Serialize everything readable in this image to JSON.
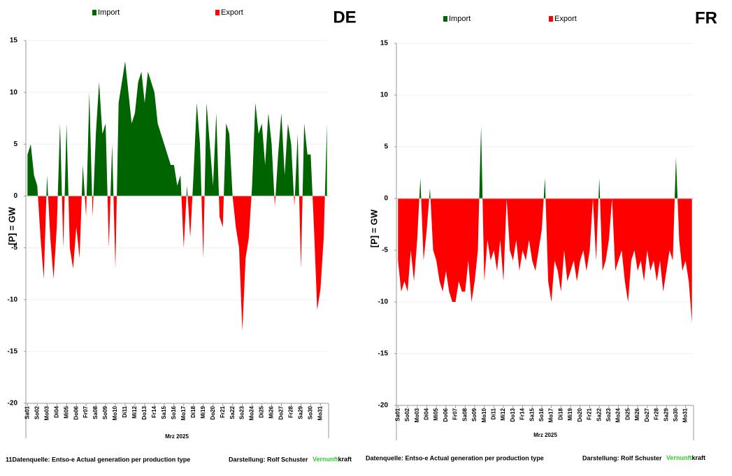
{
  "chart_data": [
    {
      "type": "area",
      "title": "DE",
      "ylabel": "[P] = GW",
      "xlabel": "Mrz 2025",
      "legend": [
        {
          "name": "Import",
          "color": "#006400"
        },
        {
          "name": "Export",
          "color": "#ff0000"
        }
      ],
      "positive_color": "#006400",
      "negative_color": "#ff0000",
      "negative_tick_color": "#c00000",
      "ylim": [
        -20,
        15
      ],
      "yticks": [
        -20,
        -15,
        -10,
        -5,
        0,
        5,
        10,
        15
      ],
      "grid": true,
      "categories": [
        "Sa01",
        null,
        null,
        "So02",
        null,
        null,
        "Mo03",
        null,
        null,
        "Di04",
        null,
        null,
        "Mi05",
        null,
        null,
        "Do06",
        null,
        null,
        "Fr07",
        null,
        null,
        "Sa08",
        null,
        null,
        "So09",
        null,
        null,
        "Mo10",
        null,
        null,
        "Di11",
        null,
        null,
        "Mi12",
        null,
        null,
        "Do13",
        null,
        null,
        "Fr14",
        null,
        null,
        "Sa15",
        null,
        null,
        "So16",
        null,
        null,
        "Mo17",
        null,
        null,
        "Di18",
        null,
        null,
        "Mi19",
        null,
        null,
        "Do20",
        null,
        null,
        "Fr21",
        null,
        null,
        "Sa22",
        null,
        null,
        "So23",
        null,
        null,
        "Mo24",
        null,
        null,
        "Di25",
        null,
        null,
        "Mi26",
        null,
        null,
        "Do27",
        null,
        null,
        "Fr28",
        null,
        null,
        "Sa29",
        null,
        null,
        "So30",
        null,
        null,
        "Mo31",
        null,
        null
      ],
      "values": [
        4,
        5,
        2,
        1,
        -4,
        -8,
        2,
        -4,
        -8,
        -3,
        7,
        -5,
        7,
        -5,
        -7,
        -3,
        -6,
        3,
        -2,
        10,
        -2,
        6,
        11,
        6,
        7,
        -5,
        5,
        -7,
        9,
        11,
        13,
        10,
        7,
        8,
        11,
        12,
        9,
        12,
        11,
        10,
        7,
        6,
        5,
        4,
        3,
        3,
        1,
        2,
        -5,
        1,
        -4,
        2,
        9,
        5,
        -6,
        9,
        5,
        1,
        8,
        -2,
        -3,
        7,
        6,
        0,
        -3,
        -5,
        -13,
        -6,
        -4,
        1,
        9,
        6,
        7,
        3,
        8,
        5,
        -1,
        4,
        8,
        2,
        7,
        5,
        -1,
        6,
        -7,
        7,
        4,
        4,
        -3,
        -11,
        -9,
        -4,
        7
      ],
      "source": "11Datenquelle: Entso-e  Actual generation per production type",
      "credit": "Darstellung:  Rolf Schuster",
      "brand_a": "Vernunft",
      "brand_b": "kraft"
    },
    {
      "type": "area",
      "title": "FR",
      "ylabel": "[P] = GW",
      "xlabel": "Mrz 2025",
      "legend": [
        {
          "name": "Import",
          "color": "#006400"
        },
        {
          "name": "Export",
          "color": "#ff0000"
        }
      ],
      "positive_color": "#006400",
      "negative_color": "#ff0000",
      "negative_tick_color": "#c00000",
      "ylim": [
        -20,
        15
      ],
      "yticks": [
        -20,
        -15,
        -10,
        -5,
        0,
        5,
        10,
        15
      ],
      "grid": true,
      "categories": [
        "Sa01",
        null,
        null,
        "So02",
        null,
        null,
        "Mo03",
        null,
        null,
        "Di04",
        null,
        null,
        "Mi05",
        null,
        null,
        "Do06",
        null,
        null,
        "Fr07",
        null,
        null,
        "Sa08",
        null,
        null,
        "So09",
        null,
        null,
        "Mo10",
        null,
        null,
        "Di11",
        null,
        null,
        "Mi12",
        null,
        null,
        "Do13",
        null,
        null,
        "Fr14",
        null,
        null,
        "Sa15",
        null,
        null,
        "So16",
        null,
        null,
        "Mo17",
        null,
        null,
        "Di18",
        null,
        null,
        "Mi19",
        null,
        null,
        "Do20",
        null,
        null,
        "Fr21",
        null,
        null,
        "Sa22",
        null,
        null,
        "So23",
        null,
        null,
        "Mo24",
        null,
        null,
        "Di25",
        null,
        null,
        "Mi26",
        null,
        null,
        "Do27",
        null,
        null,
        "Fr28",
        null,
        null,
        "Sa29",
        null,
        null,
        "So30",
        null,
        null,
        "Mo31",
        null,
        null
      ],
      "values": [
        -6,
        -9,
        -8,
        -9,
        -5,
        -8,
        -4,
        2,
        -6,
        -3,
        1,
        -5,
        -6,
        -8,
        -9,
        -7,
        -9,
        -10,
        -10,
        -8,
        -9,
        -9,
        -6,
        -10,
        -8,
        -5,
        7,
        -8,
        -4,
        -6,
        -5,
        -7,
        -4,
        -8,
        0,
        -5,
        -6,
        -4,
        -7,
        -5,
        -6,
        -4,
        -6,
        -7,
        -5,
        -3,
        2,
        -8,
        -10,
        -6,
        -7,
        -9,
        -5,
        -8,
        -7,
        -6,
        -8,
        -6,
        -5,
        -7,
        -5,
        0,
        -6,
        2,
        -7,
        -6,
        -4,
        0,
        -7,
        -6,
        -5,
        -8,
        -10,
        -6,
        -5,
        -7,
        -6,
        -8,
        -5,
        -7,
        -6,
        -8,
        -6,
        -9,
        -7,
        -5,
        -6,
        4,
        -4,
        -7,
        -6,
        -8,
        -12
      ],
      "source": "Datenquelle: Entso-e  Actual generation per production type",
      "credit": "Darstellung:  Rolf Schuster",
      "brand_a": "Vernunft",
      "brand_b": "kraft"
    }
  ]
}
